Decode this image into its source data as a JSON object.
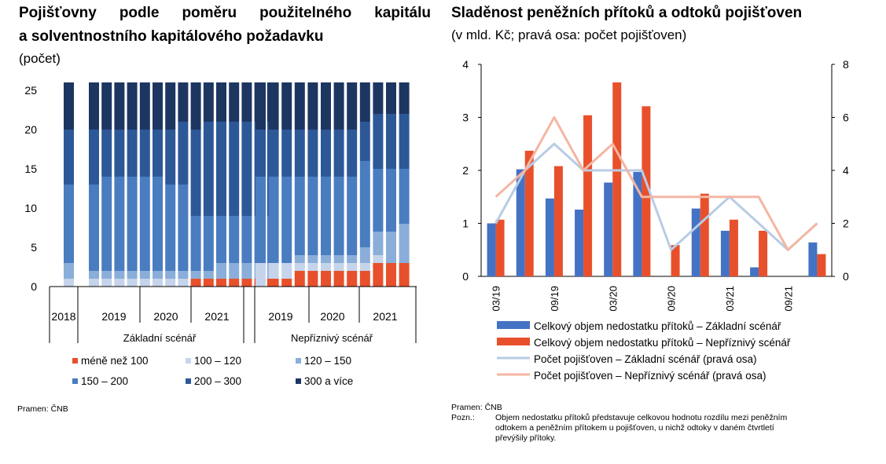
{
  "left": {
    "title_line1": "Pojišťovny podle poměru použitelného kapitálu",
    "title_line2": "a solventnostního kapitálového požadavku",
    "unit": "(počet)",
    "source": "Pramen: ČNB"
  },
  "right": {
    "title": "Sladěnost peněžních přítoků a odtoků pojišťoven",
    "unit": "(v mld. Kč; pravá osa: počet pojišťoven)",
    "source": "Pramen: ČNB",
    "note_label": "Pozn.:",
    "note_line1": "Objem nedostatku přítoků představuje celkovou hodnotu rozdílu mezi peněžním",
    "note_line2": "odtokem a peněžním přítokem u pojišťoven, u nichž odtoky v daném čtvrtletí",
    "note_line3": "převýšily přítoky."
  },
  "chart_data": [
    {
      "type": "bar",
      "stacked": true,
      "ylim": [
        0,
        26
      ],
      "yticks": [
        0,
        5,
        10,
        15,
        20,
        25
      ],
      "grid": false,
      "legend_position": "bottom",
      "x_groups_level1": [
        "2018",
        "2019",
        "2020",
        "2021",
        "2019",
        "2020",
        "2021"
      ],
      "x_groups_level2": [
        "Základní scénář",
        "Nepříznivý scénář"
      ],
      "series": [
        {
          "name": "méně než 100",
          "color": "#e8502c",
          "values": [
            0,
            0,
            0,
            0,
            0,
            0,
            0,
            0,
            0,
            1,
            1,
            1,
            1,
            1,
            1,
            1,
            0,
            1,
            1,
            2,
            2,
            2,
            2,
            2,
            2,
            3,
            3,
            3
          ]
        },
        {
          "name": "100 – 120",
          "color": "#c5d4eb",
          "values": [
            1,
            1,
            1,
            1,
            1,
            1,
            1,
            1,
            1,
            0,
            0,
            0,
            0,
            0,
            0,
            0,
            3,
            2,
            2,
            1,
            1,
            1,
            1,
            1,
            1,
            1,
            0,
            0
          ]
        },
        {
          "name": "120 – 150",
          "color": "#8aaed9",
          "values": [
            2,
            1,
            1,
            1,
            1,
            1,
            1,
            1,
            1,
            1,
            1,
            2,
            2,
            2,
            2,
            2,
            0,
            0,
            0,
            1,
            1,
            1,
            1,
            1,
            2,
            3,
            4,
            5
          ]
        },
        {
          "name": "150 – 200",
          "color": "#4a7cc0",
          "values": [
            10,
            11,
            12,
            12,
            12,
            12,
            12,
            11,
            11,
            7,
            7,
            6,
            6,
            6,
            6,
            6,
            11,
            11,
            11,
            10,
            10,
            10,
            10,
            10,
            11,
            8,
            8,
            7
          ]
        },
        {
          "name": "200 – 300",
          "color": "#2d5898",
          "values": [
            7,
            7,
            6,
            6,
            6,
            6,
            6,
            7,
            8,
            11,
            12,
            12,
            12,
            12,
            12,
            12,
            6,
            6,
            6,
            6,
            6,
            6,
            6,
            6,
            5,
            7,
            7,
            7
          ]
        },
        {
          "name": "300 a více",
          "color": "#1d3661",
          "values": [
            6,
            6,
            6,
            6,
            6,
            6,
            6,
            6,
            5,
            6,
            5,
            5,
            5,
            5,
            5,
            5,
            6,
            6,
            6,
            6,
            6,
            6,
            6,
            6,
            5,
            4,
            4,
            4
          ]
        }
      ]
    },
    {
      "type": "bar",
      "categories": [
        "03/19",
        "06/19",
        "09/19",
        "12/19",
        "03/20",
        "06/20",
        "09/20",
        "12/20",
        "03/21",
        "06/21",
        "09/21",
        "12/21"
      ],
      "x_tick_labels": [
        "03/19",
        "09/19",
        "03/20",
        "09/20",
        "03/21",
        "09/21"
      ],
      "ylim_left": [
        0,
        4
      ],
      "yticks_left": [
        0,
        1,
        2,
        3,
        4
      ],
      "ylim_right": [
        0,
        8
      ],
      "yticks_right": [
        0,
        2,
        4,
        6,
        8
      ],
      "grid": false,
      "legend_position": "bottom",
      "series": [
        {
          "name": "Celkový objem nedostatku přítoků – Základní scénář",
          "kind": "bar",
          "axis": "left",
          "color": "#4472c4",
          "values": [
            1.0,
            2.02,
            1.47,
            1.26,
            1.77,
            1.97,
            0.0,
            1.28,
            0.86,
            0.17,
            0.0,
            0.64
          ]
        },
        {
          "name": "Celkový objem nedostatku přítoků – Nepříznivý scénář",
          "kind": "bar",
          "axis": "left",
          "color": "#e8502c",
          "values": [
            1.07,
            2.37,
            2.08,
            3.04,
            3.66,
            3.21,
            0.59,
            1.56,
            1.07,
            0.86,
            0.0,
            0.42
          ]
        },
        {
          "name": "Počet pojišťoven – Základní scénář (pravá osa)",
          "kind": "line",
          "axis": "right",
          "color": "#b8cce4",
          "values": [
            2,
            4,
            5,
            4,
            4,
            4,
            1,
            2,
            3,
            2,
            1,
            2
          ]
        },
        {
          "name": "Počet pojišťoven – Nepříznivý scénář (pravá osa)",
          "kind": "line",
          "axis": "right",
          "color": "#f4b6a3",
          "values": [
            3,
            4,
            6,
            4,
            5,
            3,
            3,
            3,
            3,
            3,
            1,
            2
          ]
        }
      ]
    }
  ]
}
